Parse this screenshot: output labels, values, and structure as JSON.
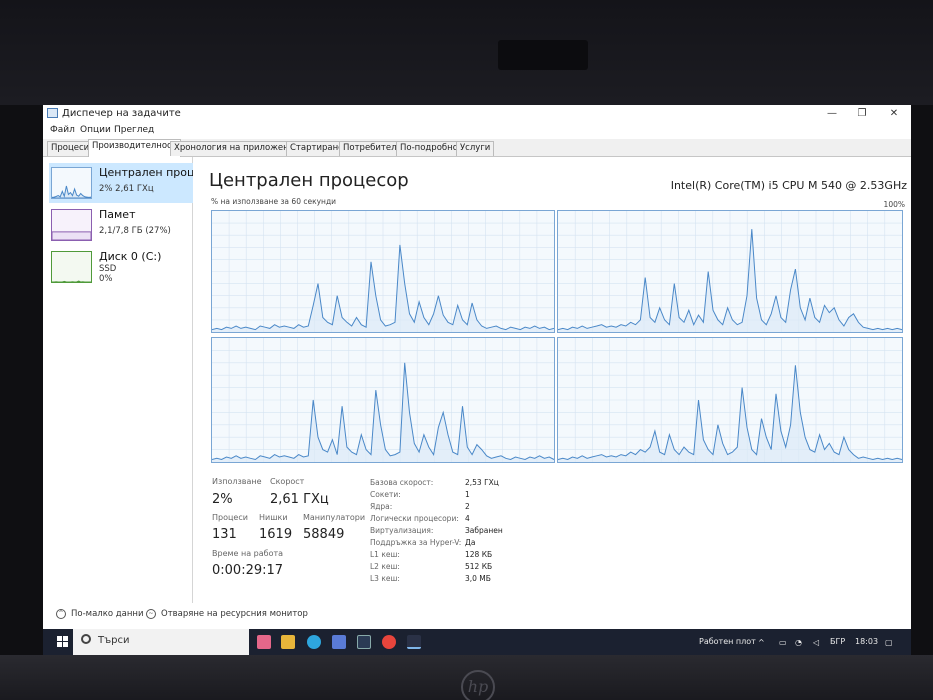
{
  "window": {
    "title": "Диспечер на задачите",
    "minimize_glyph": "—",
    "restore_glyph": "❐",
    "close_glyph": "✕"
  },
  "menu": [
    "Файл",
    "Опции",
    "Преглед"
  ],
  "tabs": [
    {
      "label": "Процеси",
      "active": false
    },
    {
      "label": "Производителност",
      "active": true
    },
    {
      "label": "Хронология на приложение",
      "active": false
    },
    {
      "label": "Стартиране",
      "active": false
    },
    {
      "label": "Потребители",
      "active": false
    },
    {
      "label": "По-подробно",
      "active": false
    },
    {
      "label": "Услуги",
      "active": false
    }
  ],
  "sidebar": {
    "items": [
      {
        "title": "Централен проце",
        "line1": "2% 2,61 ГХц",
        "line2": "",
        "active": true
      },
      {
        "title": "Памет",
        "line1": "2,1/7,8 ГБ (27%)",
        "line2": "",
        "active": false
      },
      {
        "title": "Диск 0 (C:)",
        "line1": "SSD",
        "line2": "0%",
        "active": false
      }
    ]
  },
  "main": {
    "title": "Централен процесор",
    "cpu_model": "Intel(R) Core(TM) i5 CPU M 540 @ 2.53GHz",
    "graph_label": "% на използване за 60 секунди",
    "graph_max": "100%"
  },
  "graphs_data": {
    "y_range": [
      0,
      100
    ],
    "series": [
      [
        2,
        3,
        2,
        4,
        3,
        5,
        3,
        4,
        3,
        2,
        5,
        4,
        3,
        6,
        4,
        5,
        4,
        3,
        6,
        4,
        5,
        22,
        40,
        12,
        8,
        6,
        30,
        12,
        8,
        5,
        12,
        6,
        4,
        58,
        30,
        10,
        5,
        6,
        8,
        72,
        40,
        15,
        8,
        25,
        12,
        6,
        15,
        30,
        14,
        8,
        6,
        22,
        10,
        6,
        24,
        10,
        5,
        3,
        4,
        5,
        3,
        2,
        4,
        3,
        2,
        4,
        3,
        5,
        3,
        4,
        2,
        3
      ],
      [
        2,
        3,
        2,
        4,
        3,
        5,
        3,
        4,
        5,
        6,
        4,
        5,
        4,
        6,
        5,
        8,
        6,
        10,
        45,
        12,
        8,
        20,
        10,
        6,
        40,
        12,
        8,
        18,
        6,
        14,
        8,
        50,
        18,
        10,
        6,
        20,
        10,
        6,
        8,
        30,
        85,
        28,
        10,
        6,
        15,
        30,
        12,
        8,
        35,
        52,
        20,
        10,
        28,
        12,
        8,
        22,
        16,
        20,
        10,
        5,
        12,
        15,
        8,
        4,
        3,
        2,
        3,
        2,
        3,
        2,
        3,
        2
      ],
      [
        2,
        3,
        2,
        4,
        3,
        5,
        3,
        4,
        3,
        2,
        5,
        4,
        3,
        6,
        4,
        5,
        4,
        3,
        6,
        4,
        5,
        50,
        20,
        10,
        8,
        18,
        6,
        45,
        12,
        8,
        6,
        22,
        10,
        6,
        58,
        30,
        10,
        5,
        6,
        8,
        80,
        40,
        15,
        8,
        22,
        12,
        6,
        28,
        40,
        22,
        8,
        6,
        45,
        12,
        6,
        14,
        10,
        5,
        3,
        4,
        5,
        3,
        2,
        4,
        3,
        2,
        4,
        3,
        5,
        3,
        4,
        2
      ],
      [
        2,
        3,
        2,
        4,
        3,
        5,
        3,
        4,
        5,
        6,
        4,
        5,
        4,
        6,
        5,
        8,
        6,
        10,
        8,
        12,
        25,
        8,
        6,
        22,
        10,
        6,
        12,
        8,
        6,
        50,
        18,
        10,
        6,
        30,
        15,
        6,
        8,
        12,
        60,
        28,
        10,
        6,
        35,
        20,
        10,
        55,
        25,
        12,
        30,
        78,
        40,
        20,
        10,
        8,
        22,
        10,
        15,
        8,
        6,
        20,
        10,
        6,
        3,
        4,
        3,
        2,
        3,
        2,
        3,
        2,
        3,
        2
      ]
    ]
  },
  "thumbs_data": {
    "cpu": [
      2,
      3,
      5,
      8,
      4,
      22,
      6,
      40,
      12,
      18,
      8,
      30,
      10,
      6,
      15,
      8,
      4,
      3,
      2,
      3
    ],
    "memory": [
      27,
      27,
      27,
      27,
      27,
      27,
      27,
      27,
      27,
      27,
      27,
      27,
      27,
      27,
      27,
      27,
      27,
      27,
      27,
      27
    ],
    "disk": [
      0,
      0,
      1,
      0,
      0,
      0,
      2,
      0,
      0,
      0,
      1,
      0,
      0,
      3,
      0,
      1,
      0,
      0,
      0,
      0
    ]
  },
  "stats": {
    "usage_label": "Използване",
    "usage_value": "2%",
    "speed_label": "Скорост",
    "speed_value": "2,61 ГХц",
    "processes_label": "Процеси",
    "processes_value": "131",
    "threads_label": "Нишки",
    "threads_value": "1619",
    "handles_label": "Манипулатори",
    "handles_value": "58849",
    "uptime_label": "Време на работа",
    "uptime_value": "0:00:29:17"
  },
  "specs": [
    {
      "label": "Базова скорост:",
      "value": "2,53 ГХц"
    },
    {
      "label": "Сокети:",
      "value": "1"
    },
    {
      "label": "Ядра:",
      "value": "2"
    },
    {
      "label": "Логически процесори:",
      "value": "4"
    },
    {
      "label": "Виртуализация:",
      "value": "Забранен"
    },
    {
      "label": "Поддръжка за Hyper-V:",
      "value": "Да"
    },
    {
      "label": "L1 кеш:",
      "value": "128 КБ"
    },
    {
      "label": "L2 кеш:",
      "value": "512 КБ"
    },
    {
      "label": "L3 кеш:",
      "value": "3,0 МБ"
    }
  ],
  "footer": {
    "fewer_details": "По-малко данни",
    "resource_monitor": "Отваряне на ресурсния монитор"
  },
  "taskbar": {
    "search_placeholder": "Търси",
    "desktop_label": "Работен плот",
    "language": "БГР",
    "time": "18:03"
  },
  "colors": {
    "graph_line": "#4a88c8",
    "graph_fill": "#dbe9f6",
    "grid": "#d5e3f1",
    "selected": "#cce8ff"
  }
}
